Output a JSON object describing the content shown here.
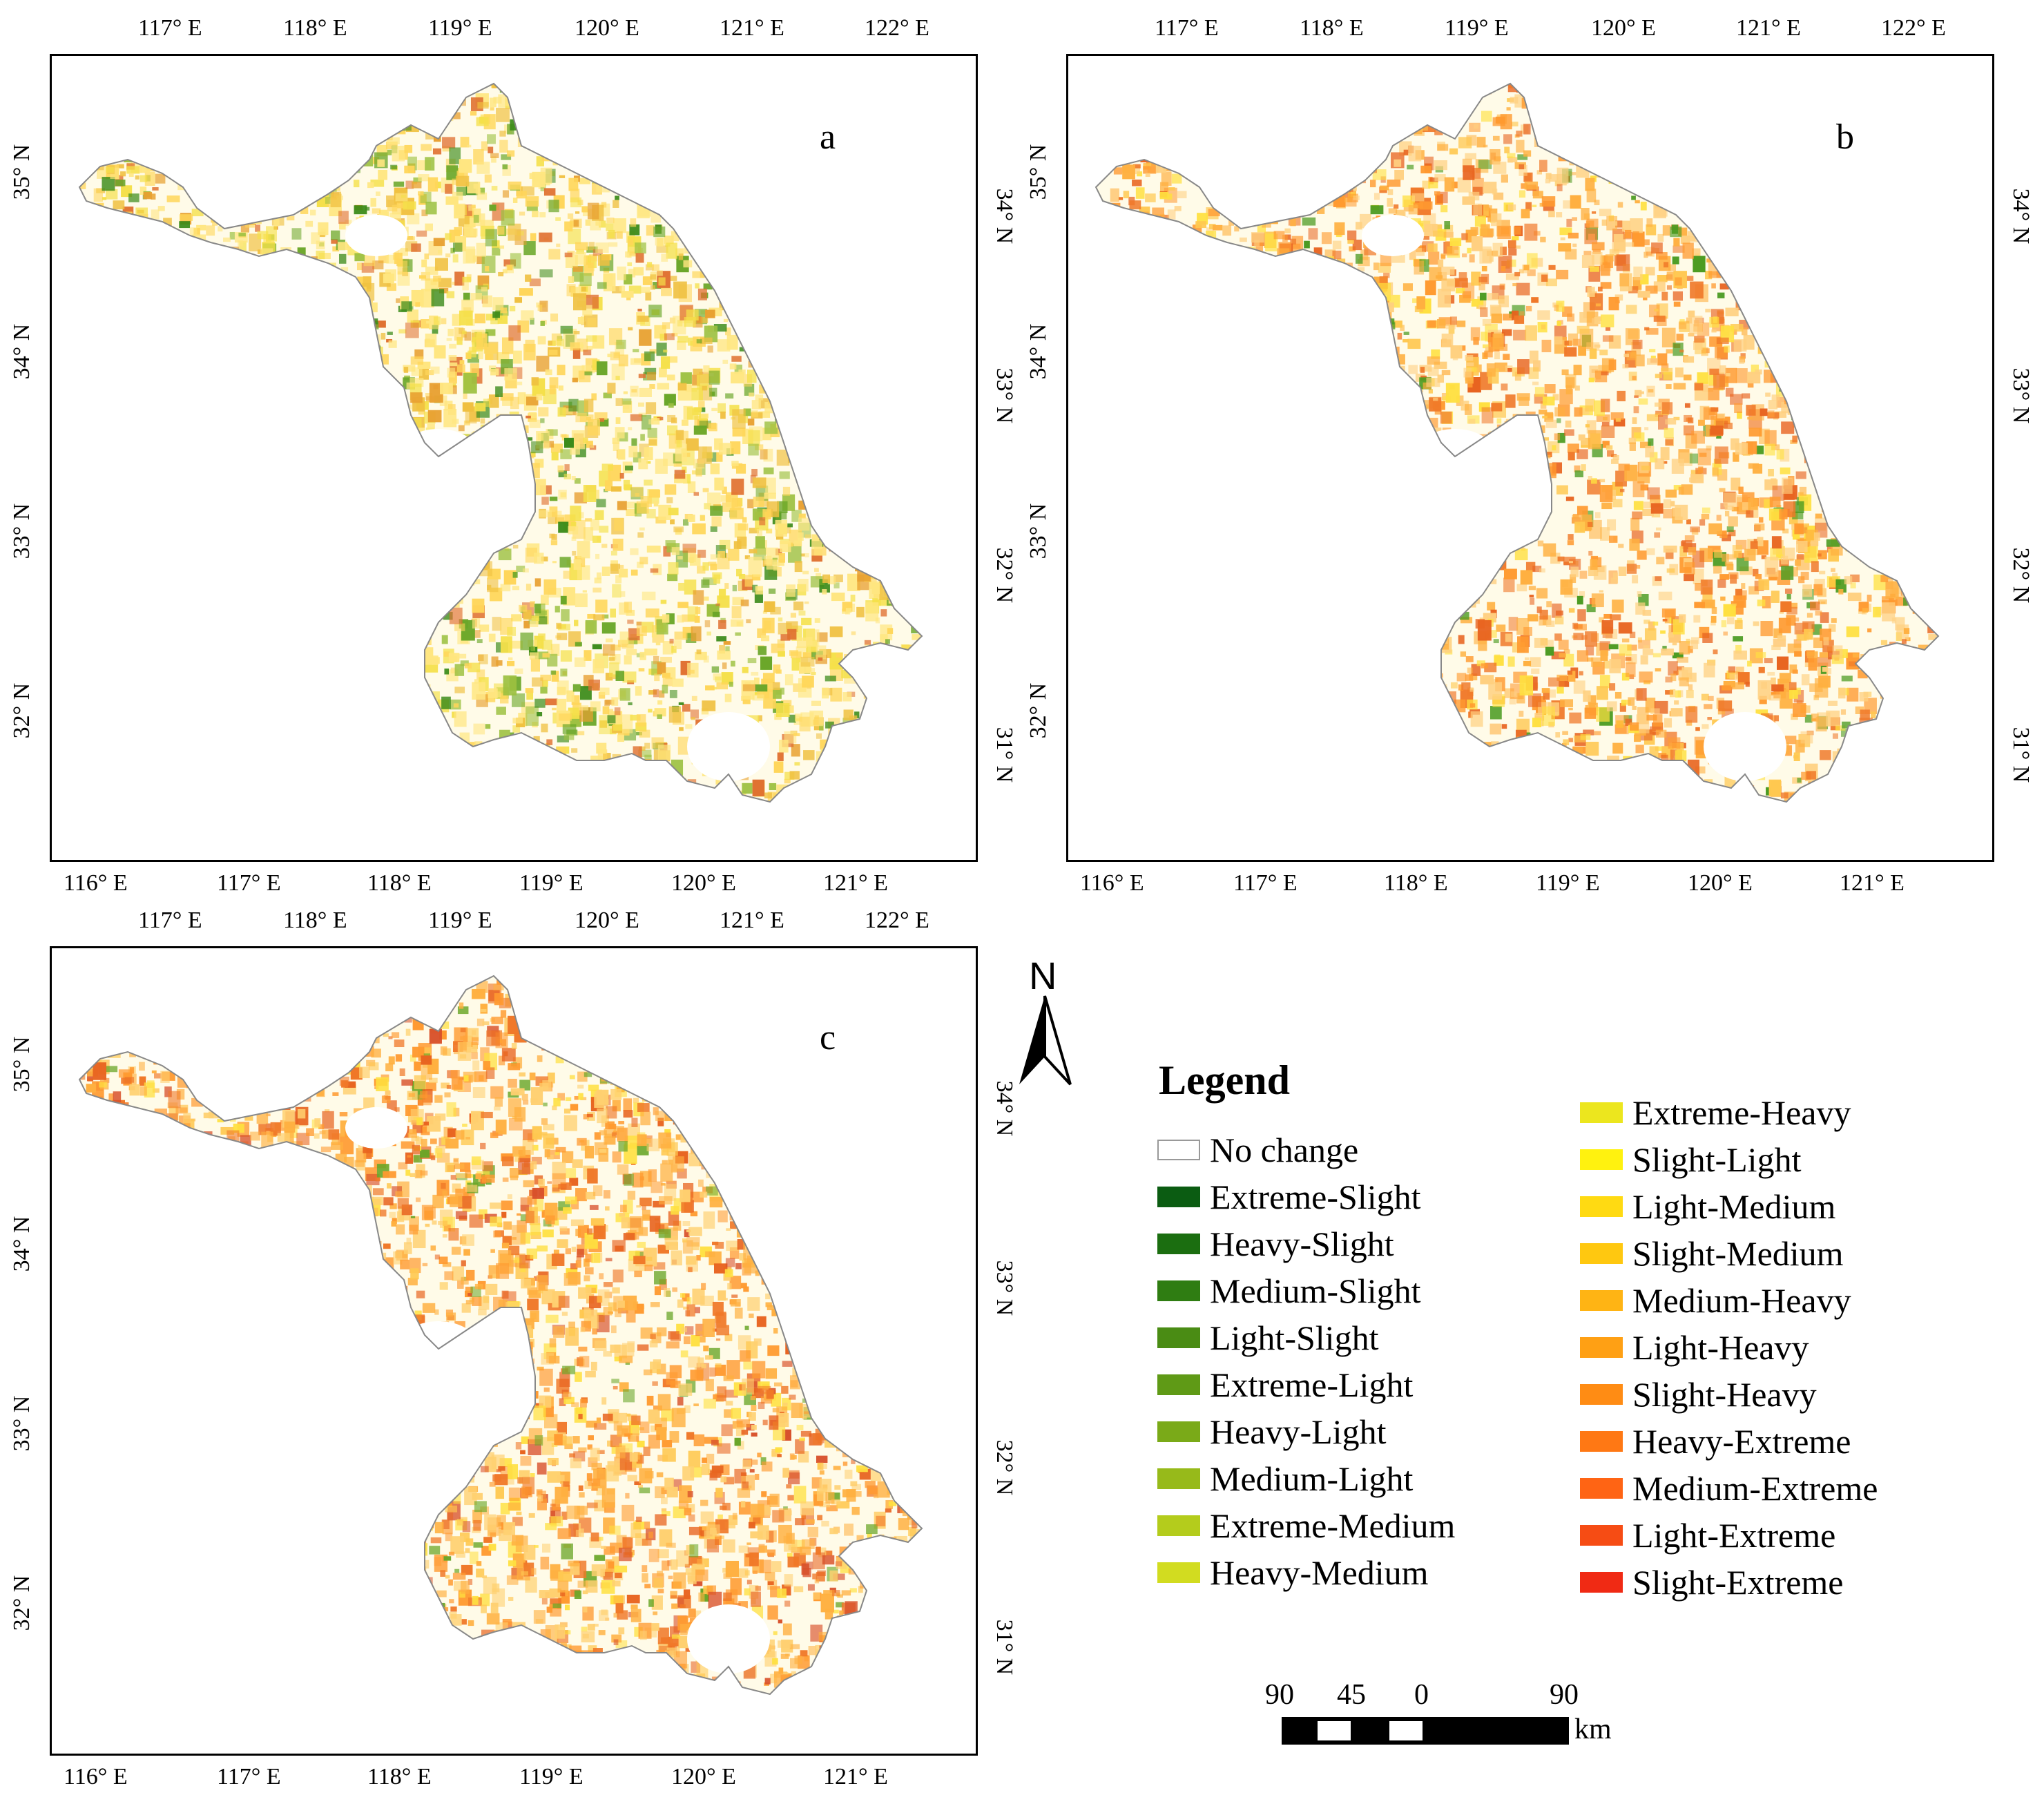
{
  "panels": [
    {
      "label": "a",
      "top_ticks": [
        "117° E",
        "118° E",
        "119° E",
        "120° E",
        "121° E",
        "122° E"
      ],
      "bottom_ticks": [
        "116° E",
        "117° E",
        "118° E",
        "119° E",
        "120° E",
        "121° E"
      ],
      "left_ticks": [
        "35° N",
        "34° N",
        "33° N",
        "32° N"
      ],
      "right_ticks": [
        "34° N",
        "33° N",
        "32° N",
        "31° N"
      ]
    },
    {
      "label": "b",
      "top_ticks": [
        "117° E",
        "118° E",
        "119° E",
        "120° E",
        "121° E",
        "122° E"
      ],
      "bottom_ticks": [
        "116° E",
        "117° E",
        "118° E",
        "119° E",
        "120° E",
        "121° E"
      ],
      "left_ticks": [
        "35° N",
        "34° N",
        "33° N",
        "32° N"
      ],
      "right_ticks": [
        "34° N",
        "33° N",
        "32° N",
        "31° N"
      ]
    },
    {
      "label": "c",
      "top_ticks": [
        "117° E",
        "118° E",
        "119° E",
        "120° E",
        "121° E",
        "122° E"
      ],
      "bottom_ticks": [
        "116° E",
        "117° E",
        "118° E",
        "119° E",
        "120° E",
        "121° E"
      ],
      "left_ticks": [
        "35° N",
        "34° N",
        "33° N",
        "32° N"
      ],
      "right_ticks": [
        "34° N",
        "33° N",
        "32° N",
        "31° N"
      ]
    }
  ],
  "legend": {
    "title": "Legend",
    "left_column": [
      {
        "label": "No change",
        "color": "#ffffff"
      },
      {
        "label": "Extreme-Slight",
        "color": "#0b5c12"
      },
      {
        "label": "Heavy-Slight",
        "color": "#1b6e10"
      },
      {
        "label": "Medium-Slight",
        "color": "#2f7d12"
      },
      {
        "label": "Light-Slight",
        "color": "#4a8c14"
      },
      {
        "label": "Extreme-Light",
        "color": "#5f9a16"
      },
      {
        "label": "Heavy-Light",
        "color": "#7aaa18"
      },
      {
        "label": "Medium-Light",
        "color": "#97ba1a"
      },
      {
        "label": "Extreme-Medium",
        "color": "#b4cc1c"
      },
      {
        "label": "Heavy-Medium",
        "color": "#d2dc20"
      }
    ],
    "right_column": [
      {
        "label": "Extreme-Heavy",
        "color": "#ece61e"
      },
      {
        "label": "Slight-Light",
        "color": "#fff20f"
      },
      {
        "label": "Light-Medium",
        "color": "#ffda12"
      },
      {
        "label": "Slight-Medium",
        "color": "#ffc810"
      },
      {
        "label": "Medium-Heavy",
        "color": "#ffb414"
      },
      {
        "label": "Light-Heavy",
        "color": "#ffa014"
      },
      {
        "label": "Slight-Heavy",
        "color": "#ff8c14"
      },
      {
        "label": "Heavy-Extreme",
        "color": "#ff7814"
      },
      {
        "label": "Medium-Extreme",
        "color": "#ff6414"
      },
      {
        "label": "Light-Extreme",
        "color": "#f64c14"
      },
      {
        "label": "Slight-Extreme",
        "color": "#f02a14"
      }
    ]
  },
  "north_arrow": {
    "label": "N"
  },
  "scale_bar": {
    "labels": [
      "90",
      "45",
      "0",
      "90"
    ],
    "unit": "km"
  },
  "map_palettes": {
    "a": {
      "colors": [
        "#ffe680",
        "#ffd65a",
        "#f5e04a",
        "#f0c040",
        "#e8a030",
        "#9cc040",
        "#6aa628",
        "#3a8a18",
        "#e07030"
      ],
      "weights": [
        28,
        20,
        14,
        10,
        5,
        7,
        6,
        4,
        6
      ]
    },
    "b": {
      "colors": [
        "#ffd080",
        "#ffb040",
        "#ff9a30",
        "#f07828",
        "#ffe040",
        "#e86420",
        "#4a9a20",
        "#ffc850"
      ],
      "weights": [
        22,
        20,
        16,
        12,
        10,
        8,
        4,
        8
      ]
    },
    "c": {
      "colors": [
        "#ffd070",
        "#ffb040",
        "#ff9a30",
        "#f07828",
        "#ffe040",
        "#e86420",
        "#6aa628",
        "#ffc850",
        "#d8502a"
      ],
      "weights": [
        20,
        20,
        16,
        12,
        10,
        8,
        4,
        6,
        4
      ]
    }
  }
}
